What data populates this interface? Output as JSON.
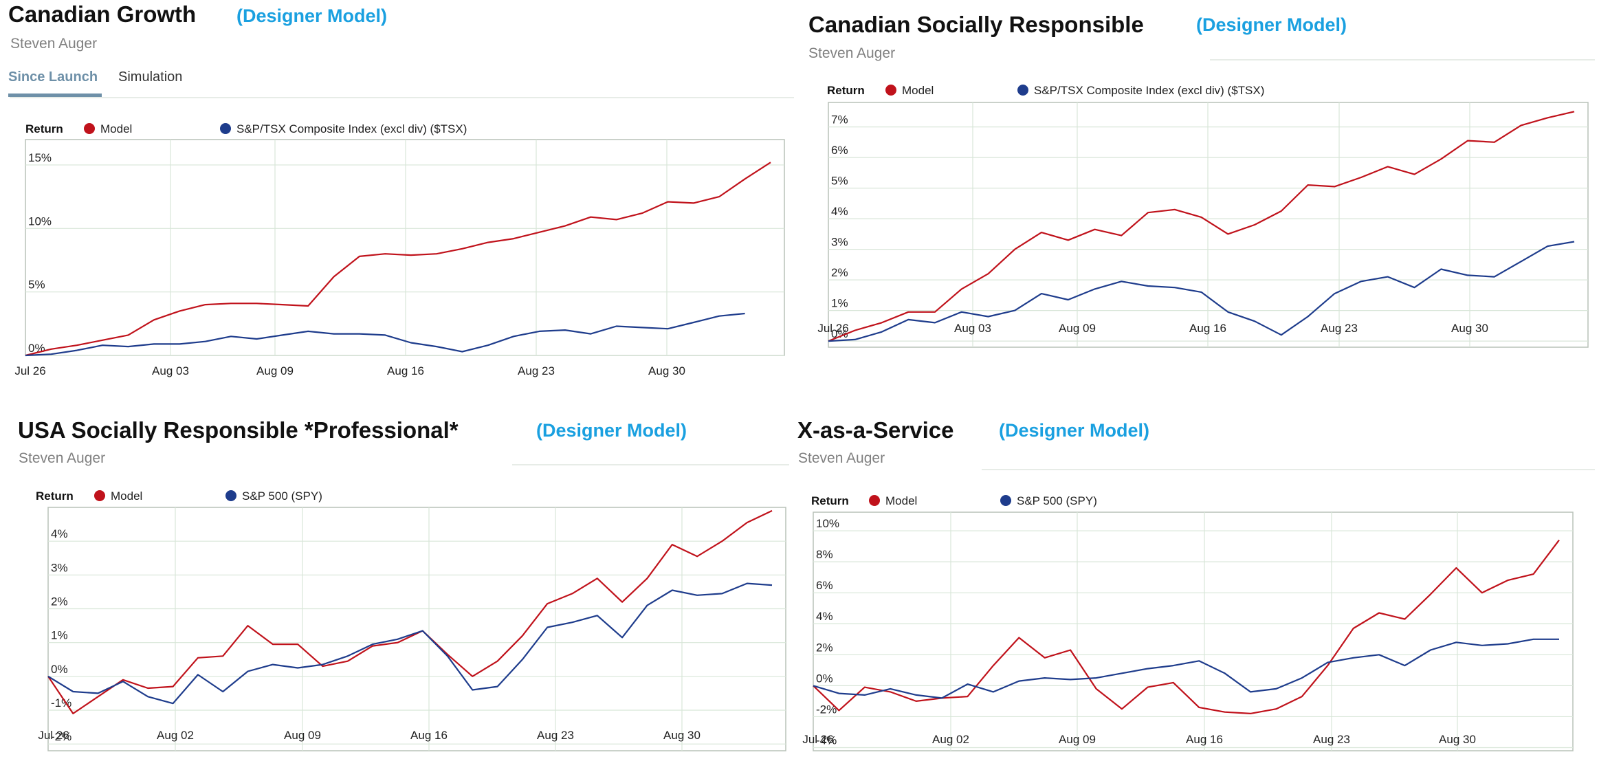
{
  "designer_label": "(Designer Model)",
  "tabs": [
    {
      "label": "Since Launch",
      "active": true
    },
    {
      "label": "Simulation",
      "active": false
    }
  ],
  "legend_title": "Return",
  "colors": {
    "model": "#c0121b",
    "benchmark": "#1e3c8c",
    "title": "#111111",
    "designer": "#1aa0e0",
    "author": "#808080",
    "tab_active": "#6e90a8"
  },
  "chart_data": [
    {
      "type": "line",
      "title": "Canadian Growth",
      "author": "Steven Auger",
      "x_ticks": [
        "Jul 26",
        "Aug 03",
        "Aug 09",
        "Aug 16",
        "Aug 23",
        "Aug 30"
      ],
      "y_ticks": [
        "0%",
        "5%",
        "10%",
        "15%"
      ],
      "ylim": [
        0,
        17
      ],
      "series": [
        {
          "name": "Model",
          "values": [
            0,
            0.5,
            0.8,
            1.2,
            1.6,
            2.8,
            3.5,
            4.0,
            4.1,
            4.1,
            4.0,
            3.9,
            6.2,
            7.8,
            8.0,
            7.9,
            8.0,
            8.4,
            8.9,
            9.2,
            9.7,
            10.2,
            10.9,
            10.7,
            11.2,
            12.1,
            12.0,
            12.5,
            13.9,
            15.2
          ]
        },
        {
          "name": "S&P/TSX Composite Index (excl div) ($TSX)",
          "values": [
            0,
            0.1,
            0.4,
            0.8,
            0.7,
            0.9,
            0.9,
            1.1,
            1.5,
            1.3,
            1.6,
            1.9,
            1.7,
            1.7,
            1.6,
            1.0,
            0.7,
            0.3,
            0.8,
            1.5,
            1.9,
            2.0,
            1.7,
            2.3,
            2.2,
            2.1,
            2.6,
            3.1,
            3.3
          ]
        }
      ]
    },
    {
      "type": "line",
      "title": "Canadian Socially Responsible",
      "author": "Steven Auger",
      "x_ticks": [
        "Jul 26",
        "Aug 03",
        "Aug 09",
        "Aug 16",
        "Aug 23",
        "Aug 30"
      ],
      "y_ticks": [
        "0%",
        "1%",
        "2%",
        "3%",
        "4%",
        "5%",
        "6%",
        "7%"
      ],
      "ylim": [
        -0.2,
        7.8
      ],
      "series": [
        {
          "name": "Model",
          "values": [
            0,
            0.35,
            0.6,
            0.95,
            0.95,
            1.7,
            2.2,
            3.0,
            3.55,
            3.3,
            3.65,
            3.45,
            4.2,
            4.3,
            4.05,
            3.5,
            3.8,
            4.25,
            5.1,
            5.05,
            5.35,
            5.7,
            5.45,
            5.95,
            6.55,
            6.5,
            7.05,
            7.3,
            7.5
          ]
        },
        {
          "name": "S&P/TSX Composite Index (excl div) ($TSX)",
          "values": [
            0,
            0.05,
            0.3,
            0.7,
            0.6,
            0.95,
            0.8,
            1.0,
            1.55,
            1.35,
            1.7,
            1.95,
            1.8,
            1.75,
            1.6,
            0.95,
            0.65,
            0.2,
            0.8,
            1.55,
            1.95,
            2.1,
            1.75,
            2.35,
            2.15,
            2.1,
            2.6,
            3.1,
            3.25
          ]
        }
      ]
    },
    {
      "type": "line",
      "title": "USA Socially Responsible *Professional*",
      "author": "Steven Auger",
      "x_ticks": [
        "Jul 26",
        "Aug 02",
        "Aug 09",
        "Aug 16",
        "Aug 23",
        "Aug 30"
      ],
      "y_ticks": [
        "-2%",
        "-1%",
        "0%",
        "1%",
        "2%",
        "3%",
        "4%"
      ],
      "ylim": [
        -2.2,
        5.0
      ],
      "series": [
        {
          "name": "Model",
          "values": [
            0,
            -1.1,
            -0.6,
            -0.1,
            -0.35,
            -0.3,
            0.55,
            0.6,
            1.5,
            0.95,
            0.95,
            0.3,
            0.45,
            0.9,
            1.0,
            1.35,
            0.65,
            0.0,
            0.45,
            1.2,
            2.15,
            2.45,
            2.9,
            2.2,
            2.9,
            3.9,
            3.55,
            4.0,
            4.55,
            4.9
          ]
        },
        {
          "name": "S&P 500 (SPY)",
          "values": [
            0,
            -0.45,
            -0.5,
            -0.15,
            -0.6,
            -0.8,
            0.05,
            -0.45,
            0.15,
            0.35,
            0.25,
            0.35,
            0.6,
            0.95,
            1.1,
            1.35,
            0.6,
            -0.4,
            -0.3,
            0.5,
            1.45,
            1.6,
            1.8,
            1.15,
            2.1,
            2.55,
            2.4,
            2.45,
            2.75,
            2.7
          ]
        }
      ]
    },
    {
      "type": "line",
      "title": "X-as-a-Service",
      "author": "Steven Auger",
      "x_ticks": [
        "Jul 26",
        "Aug 02",
        "Aug 09",
        "Aug 16",
        "Aug 23",
        "Aug 30"
      ],
      "y_ticks": [
        "-4%",
        "-2%",
        "0%",
        "2%",
        "4%",
        "6%",
        "8%",
        "10%"
      ],
      "ylim": [
        -4.2,
        11.2
      ],
      "series": [
        {
          "name": "Model",
          "values": [
            0,
            -1.6,
            -0.1,
            -0.4,
            -1.0,
            -0.8,
            -0.7,
            1.3,
            3.1,
            1.8,
            2.3,
            -0.2,
            -1.5,
            -0.1,
            0.2,
            -1.4,
            -1.7,
            -1.8,
            -1.5,
            -0.7,
            1.3,
            3.7,
            4.7,
            4.3,
            5.9,
            7.6,
            6.0,
            6.8,
            7.2,
            9.4
          ]
        },
        {
          "name": "S&P 500 (SPY)",
          "values": [
            0,
            -0.5,
            -0.6,
            -0.2,
            -0.6,
            -0.8,
            0.1,
            -0.4,
            0.3,
            0.5,
            0.4,
            0.5,
            0.8,
            1.1,
            1.3,
            1.6,
            0.8,
            -0.4,
            -0.2,
            0.5,
            1.5,
            1.8,
            2.0,
            1.3,
            2.3,
            2.8,
            2.6,
            2.7,
            3.0,
            3.0
          ]
        }
      ]
    }
  ]
}
